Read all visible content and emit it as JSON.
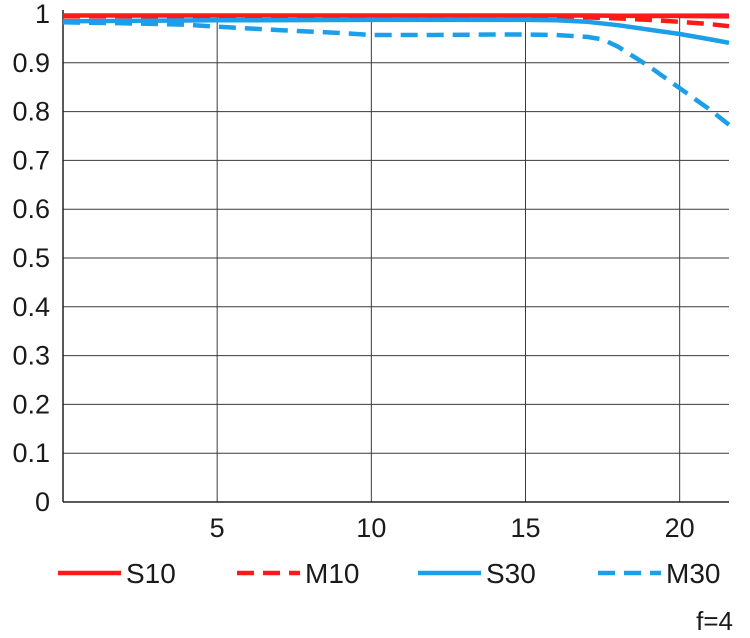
{
  "chart_data": {
    "type": "line",
    "title": "",
    "xlabel": "",
    "ylabel": "",
    "xlim": [
      0,
      21.6
    ],
    "ylim": [
      0,
      1
    ],
    "x_ticks": [
      5,
      10,
      15,
      20
    ],
    "x_tick_labels": [
      "5",
      "10",
      "15",
      "20"
    ],
    "y_ticks": [
      0,
      0.1,
      0.2,
      0.3,
      0.4,
      0.5,
      0.6,
      0.7,
      0.8,
      0.9,
      1
    ],
    "y_tick_labels": [
      "0",
      "0.1",
      "0.2",
      "0.3",
      "0.4",
      "0.5",
      "0.6",
      "0.7",
      "0.8",
      "0.9",
      "1"
    ],
    "grid": true,
    "legend_position": "bottom",
    "annotation": "f=4",
    "series": [
      {
        "name": "S10",
        "color": "#ff1a1a",
        "dashed": false,
        "x": [
          0,
          5,
          10,
          15,
          17,
          19,
          20,
          21.6
        ],
        "y": [
          0.997,
          0.997,
          0.997,
          0.997,
          0.997,
          0.996,
          0.996,
          0.995
        ]
      },
      {
        "name": "M10",
        "color": "#ff1a1a",
        "dashed": true,
        "x": [
          0,
          5,
          10,
          15,
          17,
          18,
          19,
          20,
          21,
          21.6
        ],
        "y": [
          0.995,
          0.995,
          0.995,
          0.994,
          0.993,
          0.991,
          0.988,
          0.984,
          0.979,
          0.975
        ]
      },
      {
        "name": "S30",
        "color": "#1a9fe8",
        "dashed": false,
        "x": [
          0,
          5,
          10,
          15,
          16,
          17,
          18,
          19,
          20,
          21,
          21.6
        ],
        "y": [
          0.985,
          0.987,
          0.988,
          0.988,
          0.987,
          0.984,
          0.977,
          0.968,
          0.959,
          0.948,
          0.941
        ]
      },
      {
        "name": "M30",
        "color": "#1a9fe8",
        "dashed": true,
        "x": [
          0,
          2,
          4,
          5,
          7,
          9,
          10,
          12,
          14,
          15,
          16,
          17,
          17.5,
          18,
          19,
          20,
          21,
          21.6
        ],
        "y": [
          0.983,
          0.981,
          0.978,
          0.974,
          0.967,
          0.961,
          0.957,
          0.957,
          0.958,
          0.958,
          0.957,
          0.953,
          0.948,
          0.933,
          0.893,
          0.848,
          0.803,
          0.773
        ]
      }
    ]
  }
}
